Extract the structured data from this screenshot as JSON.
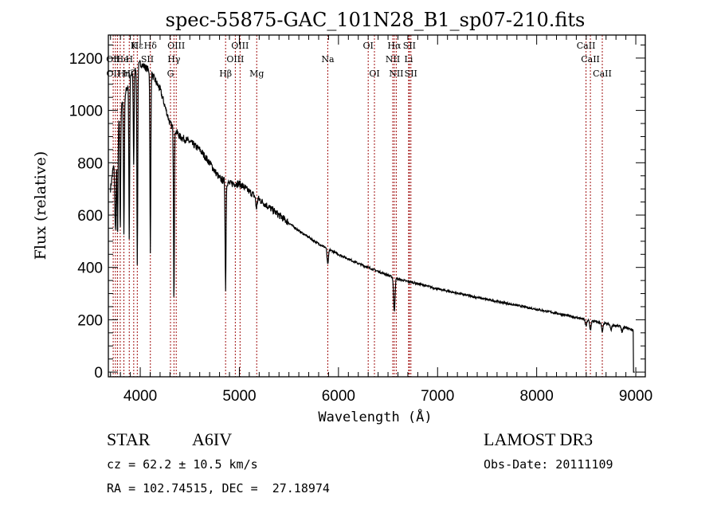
{
  "chart_data": {
    "type": "line",
    "title": "spec-55875-GAC_101N28_B1_sp07-210.fits",
    "xlabel": "Wavelength (Å)",
    "ylabel": "Flux (relative)",
    "xlim": [
      3678,
      9096
    ],
    "ylim": [
      -18,
      1288
    ],
    "xticks": [
      4000,
      5000,
      6000,
      7000,
      8000,
      9000
    ],
    "xtick_labels": [
      "4000",
      "5000",
      "6000",
      "7000",
      "8000",
      "9000"
    ],
    "yticks": [
      0,
      200,
      400,
      600,
      800,
      1000,
      1200
    ],
    "ytick_labels": [
      "0",
      "200",
      "400",
      "600",
      "800",
      "1000",
      "1200"
    ],
    "grid": false,
    "line_color": "#000000",
    "marker_color": "#a01010",
    "continuum": {
      "x": [
        3700,
        3800,
        3900,
        4000,
        4100,
        4200,
        4300,
        4400,
        4500,
        4600,
        4700,
        4800,
        4900,
        5000,
        5200,
        5400,
        5600,
        5800,
        6000,
        6200,
        6400,
        6600,
        6800,
        7000,
        7400,
        7800,
        8200,
        8500,
        8700,
        8900,
        8980
      ],
      "y": [
        700,
        1000,
        1130,
        1180,
        1150,
        1080,
        950,
        900,
        880,
        850,
        800,
        740,
        720,
        720,
        660,
        600,
        540,
        490,
        450,
        415,
        385,
        355,
        338,
        318,
        285,
        255,
        225,
        200,
        185,
        170,
        160
      ]
    },
    "absorption_lines": [
      {
        "wave": 3750,
        "depth": 300
      },
      {
        "wave": 3771,
        "depth": 400
      },
      {
        "wave": 3798,
        "depth": 450
      },
      {
        "wave": 3835,
        "depth": 520
      },
      {
        "wave": 3889,
        "depth": 600
      },
      {
        "wave": 3934,
        "depth": 350
      },
      {
        "wave": 3970,
        "depth": 760
      },
      {
        "wave": 4102,
        "depth": 700
      },
      {
        "wave": 4340,
        "depth": 650
      },
      {
        "wave": 4861,
        "depth": 420
      },
      {
        "wave": 5172,
        "depth": 40
      },
      {
        "wave": 5892,
        "depth": 60
      },
      {
        "wave": 6563,
        "depth": 130
      },
      {
        "wave": 8498,
        "depth": 25
      },
      {
        "wave": 8542,
        "depth": 35
      },
      {
        "wave": 8662,
        "depth": 35
      },
      {
        "wave": 8750,
        "depth": 20
      },
      {
        "wave": 8863,
        "depth": 20
      }
    ],
    "line_markers": [
      {
        "label": "Hε",
        "wave": 3970,
        "row": 0
      },
      {
        "label": "K",
        "wave": 3934,
        "row": 0
      },
      {
        "label": "Hδ",
        "wave": 4102,
        "row": 0
      },
      {
        "label": "OIII",
        "wave": 4363,
        "row": 0
      },
      {
        "label": "OIII",
        "wave": 5007,
        "row": 0
      },
      {
        "label": "OI",
        "wave": 6300,
        "row": 0
      },
      {
        "label": "Hα",
        "wave": 6563,
        "row": 0
      },
      {
        "label": "SII",
        "wave": 6716,
        "row": 0
      },
      {
        "label": "CaII",
        "wave": 8498,
        "row": 0
      },
      {
        "label": "OII",
        "wave": 3727,
        "row": 1
      },
      {
        "label": "H",
        "wave": 3889,
        "row": 1
      },
      {
        "label": "He",
        "wave": 3820,
        "row": 1
      },
      {
        "label": "SII",
        "wave": 4072,
        "row": 1
      },
      {
        "label": "Hγ",
        "wave": 4340,
        "row": 1
      },
      {
        "label": "OIII",
        "wave": 4959,
        "row": 1
      },
      {
        "label": "Na",
        "wave": 5892,
        "row": 1
      },
      {
        "label": "NII",
        "wave": 6548,
        "row": 1
      },
      {
        "label": "Li",
        "wave": 6708,
        "row": 1
      },
      {
        "label": "CaII",
        "wave": 8542,
        "row": 1
      },
      {
        "label": "OII",
        "wave": 3729,
        "row": 2
      },
      {
        "label": "Hη",
        "wave": 3835,
        "row": 2
      },
      {
        "label": "Hζ",
        "wave": 3889,
        "row": 2
      },
      {
        "label": "G",
        "wave": 4305,
        "row": 2
      },
      {
        "label": "Hβ",
        "wave": 4861,
        "row": 2
      },
      {
        "label": "Mg",
        "wave": 5175,
        "row": 2
      },
      {
        "label": "OI",
        "wave": 6363,
        "row": 2
      },
      {
        "label": "NII",
        "wave": 6583,
        "row": 2
      },
      {
        "label": "SII",
        "wave": 6731,
        "row": 2
      },
      {
        "label": "CaII",
        "wave": 8662,
        "row": 2
      }
    ],
    "marker_waves": [
      3727,
      3750,
      3771,
      3798,
      3835,
      3889,
      3934,
      3970,
      4102,
      4305,
      4340,
      4363,
      4861,
      4959,
      5007,
      5175,
      5892,
      6300,
      6363,
      6548,
      6563,
      6583,
      6708,
      6716,
      6731,
      8498,
      8542,
      8662
    ]
  },
  "info": {
    "object_class": "STAR",
    "subclass": "A6IV",
    "redshift": "cz = 62.2 ± 10.5 km/s",
    "coords": "RA = 102.74515, DEC =  27.18974",
    "survey": "LAMOST DR3",
    "obs_date": "Obs-Date: 20111109"
  }
}
